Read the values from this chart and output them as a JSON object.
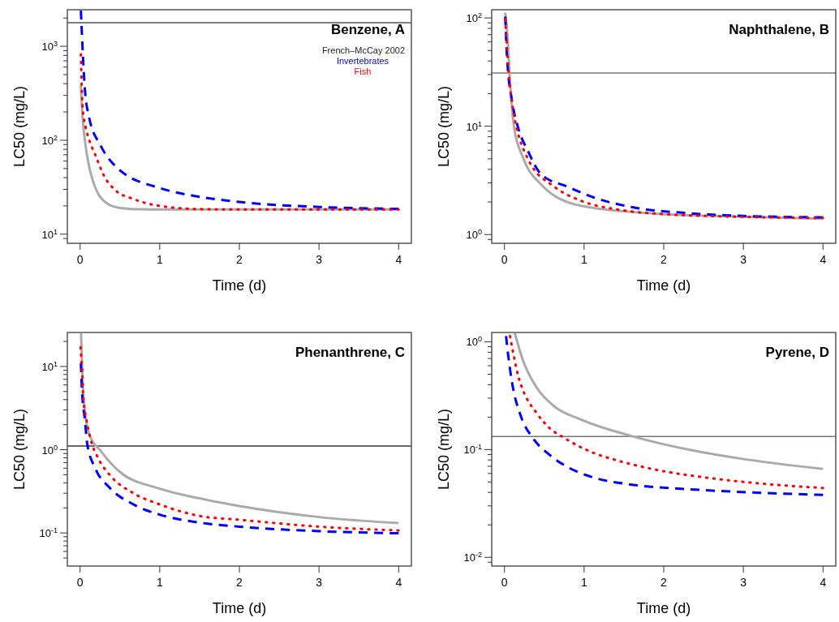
{
  "chart_data": [
    {
      "type": "line",
      "title": "Benzene, A",
      "xlabel": "Time (d)",
      "ylabel": "LC50 (mg/L)",
      "log": "y",
      "xlim": [
        -0.16,
        4.16
      ],
      "xticks": [
        0,
        1,
        2,
        3,
        4
      ],
      "ylim": [
        8,
        2450
      ],
      "yticks": [
        {
          "value": 9,
          "label": null
        },
        {
          "value": 10,
          "label": "10$^{1}$"
        },
        {
          "value": 20,
          "label": null
        },
        {
          "value": 30,
          "label": null
        },
        {
          "value": 40,
          "label": null
        },
        {
          "value": 50,
          "label": null
        },
        {
          "value": 60,
          "label": null
        },
        {
          "value": 70,
          "label": null
        },
        {
          "value": 80,
          "label": null
        },
        {
          "value": 90,
          "label": null
        },
        {
          "value": 100,
          "label": "10$^{2}$"
        },
        {
          "value": 200,
          "label": null
        },
        {
          "value": 300,
          "label": null
        },
        {
          "value": 400,
          "label": null
        },
        {
          "value": 500,
          "label": null
        },
        {
          "value": 600,
          "label": null
        },
        {
          "value": 700,
          "label": null
        },
        {
          "value": 800,
          "label": null
        },
        {
          "value": 900,
          "label": null
        },
        {
          "value": 1000,
          "label": "10$^{3}$"
        },
        {
          "value": 2000,
          "label": null
        }
      ],
      "legend": "top right",
      "legend_title": "French–McCay 2002",
      "ref_lines": [
        {
          "axis": "y",
          "value": 1780,
          "color": "#555555"
        }
      ],
      "series": [
        {
          "color": "#aaaaaa",
          "line_style": "solid",
          "x": [
            0.01,
            0.03,
            0.06,
            0.1,
            0.2,
            0.35,
            0.5,
            0.75,
            1,
            2,
            3,
            4
          ],
          "values": [
            390,
            180,
            100,
            60,
            30,
            21,
            19,
            18.4,
            18.3,
            18.3,
            18.3,
            18.3
          ]
        },
        {
          "name": "Invertebrates",
          "color": "#0000ff",
          "line_style": "dashed",
          "x": [
            0.01,
            0.06,
            0.11,
            0.26,
            0.5,
            1,
            1.5,
            2,
            3,
            4
          ],
          "values": [
            2400,
            350,
            180,
            87,
            48,
            31,
            25,
            22,
            19.5,
            18.6
          ]
        },
        {
          "name": "Fish",
          "color": "#ff0000",
          "line_style": "dotted",
          "x": [
            0.01,
            0.03,
            0.07,
            0.1,
            0.2,
            0.3,
            0.45,
            0.65,
            1,
            1.5,
            2,
            3,
            4
          ],
          "values": [
            820,
            235,
            137,
            110,
            67,
            42,
            29,
            24,
            20,
            18.5,
            18.3,
            18.3,
            18.3
          ]
        }
      ]
    },
    {
      "type": "line",
      "title": "Naphthalene, B",
      "xlabel": "Time (d)",
      "ylabel": "LC50 (mg/L)",
      "log": "y",
      "xlim": [
        -0.16,
        4.16
      ],
      "xticks": [
        0,
        1,
        2,
        3,
        4
      ],
      "ylim": [
        0.83,
        119
      ],
      "yticks": [
        {
          "value": 0.9,
          "label": null
        },
        {
          "value": 1,
          "label": "10$^{0}$"
        },
        {
          "value": 2,
          "label": null
        },
        {
          "value": 3,
          "label": null
        },
        {
          "value": 4,
          "label": null
        },
        {
          "value": 5,
          "label": null
        },
        {
          "value": 6,
          "label": null
        },
        {
          "value": 7,
          "label": null
        },
        {
          "value": 8,
          "label": null
        },
        {
          "value": 9,
          "label": null
        },
        {
          "value": 10,
          "label": "10$^{1}$"
        },
        {
          "value": 20,
          "label": null
        },
        {
          "value": 30,
          "label": null
        },
        {
          "value": 40,
          "label": null
        },
        {
          "value": 50,
          "label": null
        },
        {
          "value": 60,
          "label": null
        },
        {
          "value": 70,
          "label": null
        },
        {
          "value": 80,
          "label": null
        },
        {
          "value": 90,
          "label": null
        },
        {
          "value": 100,
          "label": "10$^{2}$"
        }
      ],
      "ref_lines": [
        {
          "axis": "y",
          "value": 31,
          "color": "#777777"
        }
      ],
      "series": [
        {
          "color": "#aaaaaa",
          "line_style": "solid",
          "x": [
            0.01,
            0.03,
            0.07,
            0.12,
            0.23,
            0.46,
            0.96,
            1.95,
            2.94,
            4
          ],
          "values": [
            112,
            82,
            26,
            9.8,
            5.2,
            2.9,
            1.84,
            1.55,
            1.46,
            1.4
          ]
        },
        {
          "color": "#0000ff",
          "line_style": "dashed",
          "x": [
            0.01,
            0.03,
            0.1,
            0.17,
            0.3,
            0.46,
            0.8,
            1.12,
            1.62,
            2.28,
            2.95,
            4
          ],
          "values": [
            103,
            46,
            16.3,
            9.8,
            5.8,
            3.6,
            2.75,
            2.2,
            1.78,
            1.58,
            1.49,
            1.44
          ]
        },
        {
          "color": "#ff0000",
          "line_style": "dotted",
          "x": [
            0.01,
            0.08,
            0.3,
            0.63,
            0.96,
            1.45,
            1.95,
            2.94,
            4
          ],
          "values": [
            97,
            19.6,
            4.9,
            2.75,
            2.05,
            1.69,
            1.55,
            1.46,
            1.42
          ]
        }
      ]
    },
    {
      "type": "line",
      "title": "Phenanthrene, C",
      "xlabel": "Time (d)",
      "ylabel": "LC50 (mg/L)",
      "log": "y",
      "xlim": [
        -0.16,
        4.16
      ],
      "xticks": [
        0,
        1,
        2,
        3,
        4
      ],
      "ylim": [
        0.04,
        25.6
      ],
      "yticks": [
        {
          "value": 0.05,
          "label": null
        },
        {
          "value": 0.06,
          "label": null
        },
        {
          "value": 0.07,
          "label": null
        },
        {
          "value": 0.08,
          "label": null
        },
        {
          "value": 0.09,
          "label": null
        },
        {
          "value": 0.1,
          "label": "10$^{-1}$"
        },
        {
          "value": 0.2,
          "label": null
        },
        {
          "value": 0.3,
          "label": null
        },
        {
          "value": 0.4,
          "label": null
        },
        {
          "value": 0.5,
          "label": null
        },
        {
          "value": 0.6,
          "label": null
        },
        {
          "value": 0.7,
          "label": null
        },
        {
          "value": 0.8,
          "label": null
        },
        {
          "value": 0.9,
          "label": null
        },
        {
          "value": 1,
          "label": "10$^{0}$"
        },
        {
          "value": 2,
          "label": null
        },
        {
          "value": 3,
          "label": null
        },
        {
          "value": 4,
          "label": null
        },
        {
          "value": 5,
          "label": null
        },
        {
          "value": 6,
          "label": null
        },
        {
          "value": 7,
          "label": null
        },
        {
          "value": 8,
          "label": null
        },
        {
          "value": 9,
          "label": null
        },
        {
          "value": 10,
          "label": "10$^{1}$"
        },
        {
          "value": 20,
          "label": null
        }
      ],
      "ref_lines": [
        {
          "axis": "y",
          "value": 1.11,
          "color": "#333333"
        }
      ],
      "series": [
        {
          "color": "#aaaaaa",
          "line_style": "solid",
          "x": [
            0.012,
            0.04,
            0.11,
            0.27,
            0.5,
            1,
            1.5,
            2,
            3,
            4
          ],
          "values": [
            25,
            4.9,
            1.59,
            0.94,
            0.54,
            0.34,
            0.26,
            0.21,
            0.155,
            0.131
          ]
        },
        {
          "color": "#0000ff",
          "line_style": "dashed",
          "x": [
            0.01,
            0.025,
            0.06,
            0.09,
            0.19,
            0.37,
            0.67,
            1,
            1.5,
            2,
            3,
            4
          ],
          "values": [
            11,
            4.9,
            2.3,
            1.17,
            0.6,
            0.35,
            0.22,
            0.166,
            0.133,
            0.119,
            0.105,
            0.099
          ]
        },
        {
          "color": "#ff0000",
          "line_style": "dotted",
          "x": [
            0.005,
            0.03,
            0.04,
            0.08,
            0.13,
            0.23,
            0.37,
            0.67,
            1,
            1.5,
            2,
            3,
            4
          ],
          "values": [
            17,
            7.1,
            4.1,
            2.3,
            1.36,
            0.78,
            0.5,
            0.3,
            0.22,
            0.16,
            0.144,
            0.119,
            0.107
          ]
        }
      ]
    },
    {
      "type": "line",
      "title": "Pyrene, D",
      "xlabel": "Time (d)",
      "ylabel": "LC50 (mg/L)",
      "log": "y",
      "xlim": [
        -0.16,
        4.16
      ],
      "xticks": [
        0,
        1,
        2,
        3,
        4
      ],
      "ylim": [
        0.0083,
        1.22
      ],
      "yticks": [
        {
          "value": 0.009,
          "label": null
        },
        {
          "value": 0.01,
          "label": "10$^{-2}$"
        },
        {
          "value": 0.02,
          "label": null
        },
        {
          "value": 0.03,
          "label": null
        },
        {
          "value": 0.04,
          "label": null
        },
        {
          "value": 0.05,
          "label": null
        },
        {
          "value": 0.06,
          "label": null
        },
        {
          "value": 0.07,
          "label": null
        },
        {
          "value": 0.08,
          "label": null
        },
        {
          "value": 0.09,
          "label": null
        },
        {
          "value": 0.1,
          "label": "10$^{-1}$"
        },
        {
          "value": 0.2,
          "label": null
        },
        {
          "value": 0.3,
          "label": null
        },
        {
          "value": 0.4,
          "label": null
        },
        {
          "value": 0.5,
          "label": null
        },
        {
          "value": 0.6,
          "label": null
        },
        {
          "value": 0.7,
          "label": null
        },
        {
          "value": 0.8,
          "label": null
        },
        {
          "value": 0.9,
          "label": null
        },
        {
          "value": 1,
          "label": "10$^{0}$"
        }
      ],
      "ref_lines": [
        {
          "axis": "y",
          "value": 0.132,
          "color": "#777777"
        }
      ],
      "series": [
        {
          "color": "#aaaaaa",
          "line_style": "solid",
          "x": [
            0.13,
            0.23,
            0.4,
            0.63,
            0.96,
            1.62,
            2.28,
            2.94,
            4
          ],
          "values": [
            1.2,
            0.68,
            0.38,
            0.25,
            0.19,
            0.132,
            0.101,
            0.083,
            0.066
          ]
        },
        {
          "color": "#0000ff",
          "line_style": "dashed",
          "x": [
            0.02,
            0.05,
            0.1,
            0.2,
            0.36,
            0.56,
            0.79,
            1.12,
            1.62,
            2.28,
            3.1,
            4
          ],
          "values": [
            1.13,
            0.72,
            0.4,
            0.21,
            0.127,
            0.09,
            0.069,
            0.055,
            0.047,
            0.043,
            0.04,
            0.038
          ]
        },
        {
          "color": "#ff0000",
          "line_style": "dotted",
          "x": [
            0.07,
            0.12,
            0.17,
            0.23,
            0.4,
            0.56,
            0.76,
            1.09,
            1.45,
            1.95,
            2.61,
            3.27,
            4
          ],
          "values": [
            1.13,
            0.72,
            0.49,
            0.36,
            0.22,
            0.16,
            0.127,
            0.095,
            0.078,
            0.064,
            0.054,
            0.048,
            0.044
          ]
        }
      ]
    }
  ]
}
